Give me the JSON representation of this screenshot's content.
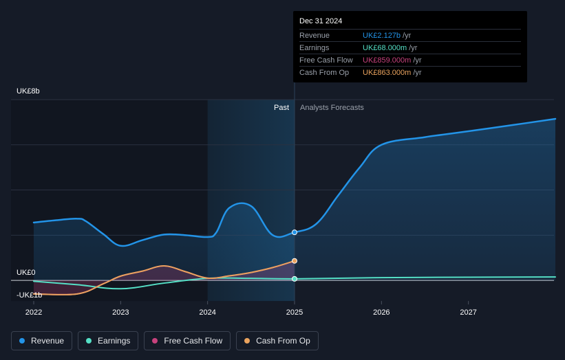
{
  "chart_data": {
    "type": "line",
    "currency_unit": "UK£",
    "y_labels": {
      "top": "UK£8b",
      "zero": "UK£0",
      "bottom": "-UK£1b"
    },
    "ylim": [
      -1,
      8
    ],
    "xlim": [
      2022,
      2028
    ],
    "x_ticks": [
      "2022",
      "2023",
      "2024",
      "2025",
      "2026",
      "2027"
    ],
    "past_label": "Past",
    "forecast_label": "Analysts Forecasts",
    "divider_x": 2025.0,
    "highlight_start": 2024.0,
    "series": [
      {
        "name": "Revenue",
        "color": "#2394e8",
        "fill": true,
        "points": [
          [
            2022.0,
            2.56
          ],
          [
            2022.25,
            2.66
          ],
          [
            2022.5,
            2.73
          ],
          [
            2022.6,
            2.62
          ],
          [
            2022.8,
            2.05
          ],
          [
            2023.0,
            1.53
          ],
          [
            2023.25,
            1.78
          ],
          [
            2023.5,
            2.03
          ],
          [
            2023.75,
            2.0
          ],
          [
            2024.0,
            1.92
          ],
          [
            2024.1,
            2.12
          ],
          [
            2024.25,
            3.21
          ],
          [
            2024.5,
            3.29
          ],
          [
            2024.75,
            2.0
          ],
          [
            2025.0,
            2.127
          ],
          [
            2025.25,
            2.5
          ],
          [
            2025.5,
            3.75
          ],
          [
            2025.75,
            5.0
          ],
          [
            2026.0,
            6.0
          ],
          [
            2026.5,
            6.34
          ],
          [
            2027.0,
            6.6
          ],
          [
            2027.5,
            6.87
          ],
          [
            2028.0,
            7.15
          ]
        ]
      },
      {
        "name": "Earnings",
        "color": "#55e0c6",
        "fill": false,
        "points": [
          [
            2022.0,
            -0.04
          ],
          [
            2022.5,
            -0.19
          ],
          [
            2023.0,
            -0.37
          ],
          [
            2023.5,
            -0.12
          ],
          [
            2024.0,
            0.09
          ],
          [
            2024.5,
            0.09
          ],
          [
            2025.0,
            0.068
          ],
          [
            2026.0,
            0.12
          ],
          [
            2027.0,
            0.14
          ],
          [
            2028.0,
            0.15
          ]
        ]
      },
      {
        "name": "Free Cash Flow",
        "color": "#c7427d",
        "fill": true,
        "points": [
          [
            2022.0,
            -0.6
          ],
          [
            2022.5,
            -0.6
          ],
          [
            2022.8,
            -0.15
          ],
          [
            2023.0,
            0.19
          ],
          [
            2023.25,
            0.41
          ],
          [
            2023.5,
            0.64
          ],
          [
            2023.75,
            0.38
          ],
          [
            2024.0,
            0.1
          ],
          [
            2024.25,
            0.2
          ],
          [
            2024.5,
            0.35
          ],
          [
            2024.75,
            0.57
          ],
          [
            2025.0,
            0.859
          ]
        ]
      },
      {
        "name": "Cash From Op",
        "color": "#eaa35e",
        "fill": false,
        "points": [
          [
            2022.0,
            -0.6
          ],
          [
            2022.5,
            -0.6
          ],
          [
            2022.8,
            -0.15
          ],
          [
            2023.0,
            0.19
          ],
          [
            2023.25,
            0.41
          ],
          [
            2023.5,
            0.64
          ],
          [
            2023.75,
            0.38
          ],
          [
            2024.0,
            0.1
          ],
          [
            2024.25,
            0.2
          ],
          [
            2024.5,
            0.35
          ],
          [
            2024.75,
            0.57
          ],
          [
            2025.0,
            0.863
          ]
        ]
      }
    ]
  },
  "tooltip": {
    "date": "Dec 31 2024",
    "rows": [
      {
        "label": "Revenue",
        "value": "UK£2.127b",
        "unit": "/yr",
        "color": "#2394e8"
      },
      {
        "label": "Earnings",
        "value": "UK£68.000m",
        "unit": "/yr",
        "color": "#55e0c6"
      },
      {
        "label": "Free Cash Flow",
        "value": "UK£859.000m",
        "unit": "/yr",
        "color": "#c7427d"
      },
      {
        "label": "Cash From Op",
        "value": "UK£863.000m",
        "unit": "/yr",
        "color": "#eaa35e"
      }
    ]
  },
  "legend": [
    {
      "label": "Revenue",
      "color": "#2394e8"
    },
    {
      "label": "Earnings",
      "color": "#55e0c6"
    },
    {
      "label": "Free Cash Flow",
      "color": "#c7427d"
    },
    {
      "label": "Cash From Op",
      "color": "#eaa35e"
    }
  ]
}
